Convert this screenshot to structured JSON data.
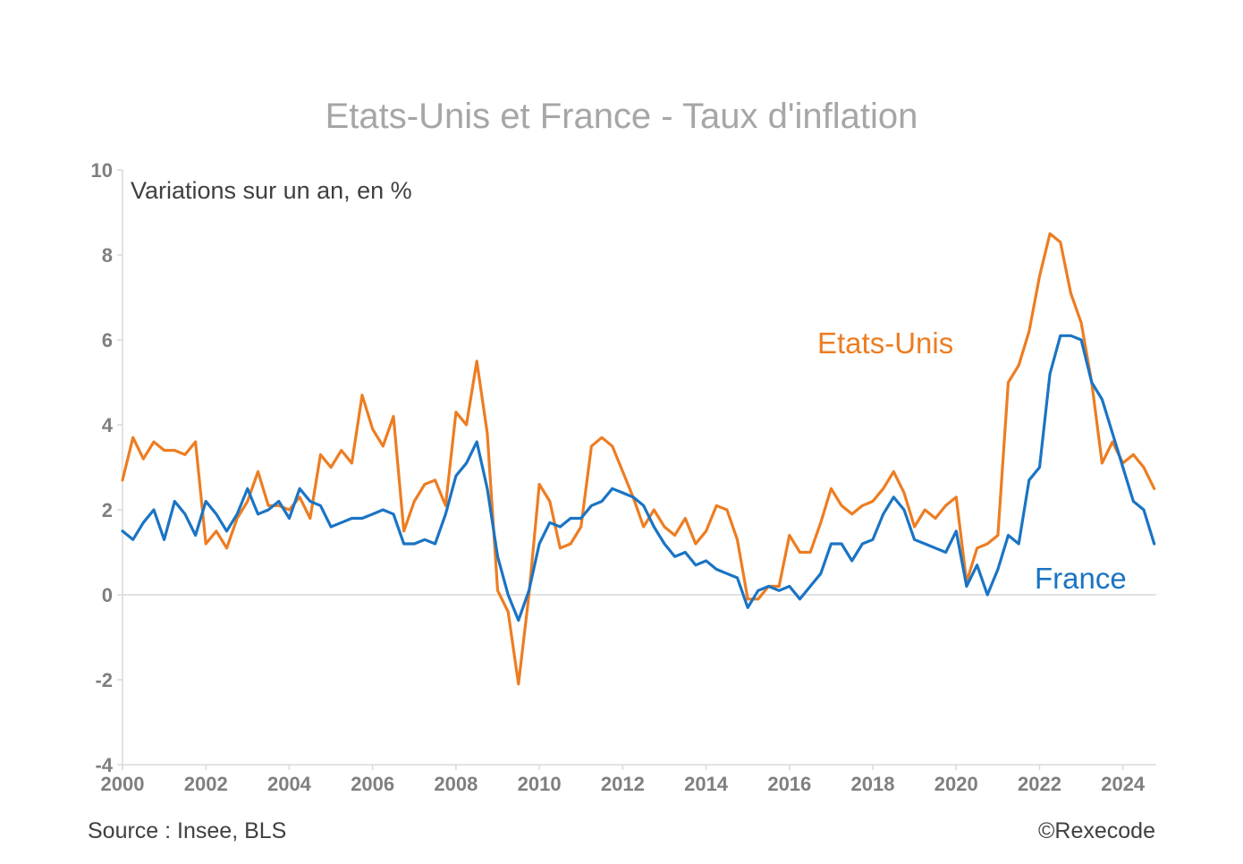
{
  "chart_data": {
    "type": "line",
    "title": "Etats-Unis et France - Taux d'inflation",
    "subtitle": "Variations sur un an, en %",
    "ylim": [
      -4,
      10
    ],
    "xlim": [
      2000,
      2024.8
    ],
    "yticks": [
      -4,
      -2,
      0,
      2,
      4,
      6,
      8,
      10
    ],
    "ytick_labels": [
      "-4",
      "-2",
      "0",
      "2",
      "4",
      "6",
      "8",
      "10"
    ],
    "xticks": [
      2000,
      2002,
      2004,
      2006,
      2008,
      2010,
      2012,
      2014,
      2016,
      2018,
      2020,
      2022,
      2024
    ],
    "xtick_labels": [
      "2000",
      "2002",
      "2004",
      "2006",
      "2008",
      "2010",
      "2012",
      "2014",
      "2016",
      "2018",
      "2020",
      "2022",
      "2024"
    ],
    "grid": false,
    "series": [
      {
        "name": "Etats-Unis",
        "color": "#ed7d22",
        "x": [
          2000.0,
          2000.25,
          2000.5,
          2000.75,
          2001.0,
          2001.25,
          2001.5,
          2001.75,
          2002.0,
          2002.25,
          2002.5,
          2002.75,
          2003.0,
          2003.25,
          2003.5,
          2003.75,
          2004.0,
          2004.25,
          2004.5,
          2004.75,
          2005.0,
          2005.25,
          2005.5,
          2005.75,
          2006.0,
          2006.25,
          2006.5,
          2006.75,
          2007.0,
          2007.25,
          2007.5,
          2007.75,
          2008.0,
          2008.25,
          2008.5,
          2008.75,
          2009.0,
          2009.25,
          2009.5,
          2009.75,
          2010.0,
          2010.25,
          2010.5,
          2010.75,
          2011.0,
          2011.25,
          2011.5,
          2011.75,
          2012.0,
          2012.25,
          2012.5,
          2012.75,
          2013.0,
          2013.25,
          2013.5,
          2013.75,
          2014.0,
          2014.25,
          2014.5,
          2014.75,
          2015.0,
          2015.25,
          2015.5,
          2015.75,
          2016.0,
          2016.25,
          2016.5,
          2016.75,
          2017.0,
          2017.25,
          2017.5,
          2017.75,
          2018.0,
          2018.25,
          2018.5,
          2018.75,
          2019.0,
          2019.25,
          2019.5,
          2019.75,
          2020.0,
          2020.25,
          2020.5,
          2020.75,
          2021.0,
          2021.25,
          2021.5,
          2021.75,
          2022.0,
          2022.25,
          2022.5,
          2022.75,
          2023.0,
          2023.25,
          2023.5,
          2023.75,
          2024.0,
          2024.25,
          2024.5,
          2024.75
        ],
        "values": [
          2.7,
          3.7,
          3.2,
          3.6,
          3.4,
          3.4,
          3.3,
          3.6,
          1.2,
          1.5,
          1.1,
          1.8,
          2.2,
          2.9,
          2.1,
          2.1,
          2.0,
          2.3,
          1.8,
          3.3,
          3.0,
          3.4,
          3.1,
          4.7,
          3.9,
          3.5,
          4.2,
          1.5,
          2.2,
          2.6,
          2.7,
          2.1,
          4.3,
          4.0,
          5.5,
          3.8,
          0.1,
          -0.4,
          -2.1,
          0.0,
          2.6,
          2.2,
          1.1,
          1.2,
          1.6,
          3.5,
          3.7,
          3.5,
          2.9,
          2.3,
          1.6,
          2.0,
          1.6,
          1.4,
          1.8,
          1.2,
          1.5,
          2.1,
          2.0,
          1.3,
          -0.1,
          -0.1,
          0.2,
          0.2,
          1.4,
          1.0,
          1.0,
          1.7,
          2.5,
          2.1,
          1.9,
          2.1,
          2.2,
          2.5,
          2.9,
          2.4,
          1.6,
          2.0,
          1.8,
          2.1,
          2.3,
          0.3,
          1.1,
          1.2,
          1.4,
          5.0,
          5.4,
          6.2,
          7.5,
          8.5,
          8.3,
          7.1,
          6.4,
          5.0,
          3.1,
          3.6,
          3.1,
          3.3,
          3.0,
          2.5
        ]
      },
      {
        "name": "France",
        "color": "#1a74c4",
        "x": [
          2000.0,
          2000.25,
          2000.5,
          2000.75,
          2001.0,
          2001.25,
          2001.5,
          2001.75,
          2002.0,
          2002.25,
          2002.5,
          2002.75,
          2003.0,
          2003.25,
          2003.5,
          2003.75,
          2004.0,
          2004.25,
          2004.5,
          2004.75,
          2005.0,
          2005.25,
          2005.5,
          2005.75,
          2006.0,
          2006.25,
          2006.5,
          2006.75,
          2007.0,
          2007.25,
          2007.5,
          2007.75,
          2008.0,
          2008.25,
          2008.5,
          2008.75,
          2009.0,
          2009.25,
          2009.5,
          2009.75,
          2010.0,
          2010.25,
          2010.5,
          2010.75,
          2011.0,
          2011.25,
          2011.5,
          2011.75,
          2012.0,
          2012.25,
          2012.5,
          2012.75,
          2013.0,
          2013.25,
          2013.5,
          2013.75,
          2014.0,
          2014.25,
          2014.5,
          2014.75,
          2015.0,
          2015.25,
          2015.5,
          2015.75,
          2016.0,
          2016.25,
          2016.5,
          2016.75,
          2017.0,
          2017.25,
          2017.5,
          2017.75,
          2018.0,
          2018.25,
          2018.5,
          2018.75,
          2019.0,
          2019.25,
          2019.5,
          2019.75,
          2020.0,
          2020.25,
          2020.5,
          2020.75,
          2021.0,
          2021.25,
          2021.5,
          2021.75,
          2022.0,
          2022.25,
          2022.5,
          2022.75,
          2023.0,
          2023.25,
          2023.5,
          2023.75,
          2024.0,
          2024.25,
          2024.5,
          2024.75
        ],
        "values": [
          1.5,
          1.3,
          1.7,
          2.0,
          1.3,
          2.2,
          1.9,
          1.4,
          2.2,
          1.9,
          1.5,
          1.9,
          2.5,
          1.9,
          2.0,
          2.2,
          1.8,
          2.5,
          2.2,
          2.1,
          1.6,
          1.7,
          1.8,
          1.8,
          1.9,
          2.0,
          1.9,
          1.2,
          1.2,
          1.3,
          1.2,
          1.9,
          2.8,
          3.1,
          3.6,
          2.5,
          0.9,
          0.0,
          -0.6,
          0.1,
          1.2,
          1.7,
          1.6,
          1.8,
          1.8,
          2.1,
          2.2,
          2.5,
          2.4,
          2.3,
          2.1,
          1.6,
          1.2,
          0.9,
          1.0,
          0.7,
          0.8,
          0.6,
          0.5,
          0.4,
          -0.3,
          0.1,
          0.2,
          0.1,
          0.2,
          -0.1,
          0.2,
          0.5,
          1.2,
          1.2,
          0.8,
          1.2,
          1.3,
          1.9,
          2.3,
          2.0,
          1.3,
          1.2,
          1.1,
          1.0,
          1.5,
          0.2,
          0.7,
          0.0,
          0.6,
          1.4,
          1.2,
          2.7,
          3.0,
          5.2,
          6.1,
          6.1,
          6.0,
          5.0,
          4.6,
          3.8,
          3.0,
          2.2,
          2.0,
          1.2
        ]
      }
    ],
    "series_labels": [
      "Etats-Unis",
      "France"
    ],
    "source": "Source : Insee, BLS",
    "copyright": "©Rexecode"
  }
}
